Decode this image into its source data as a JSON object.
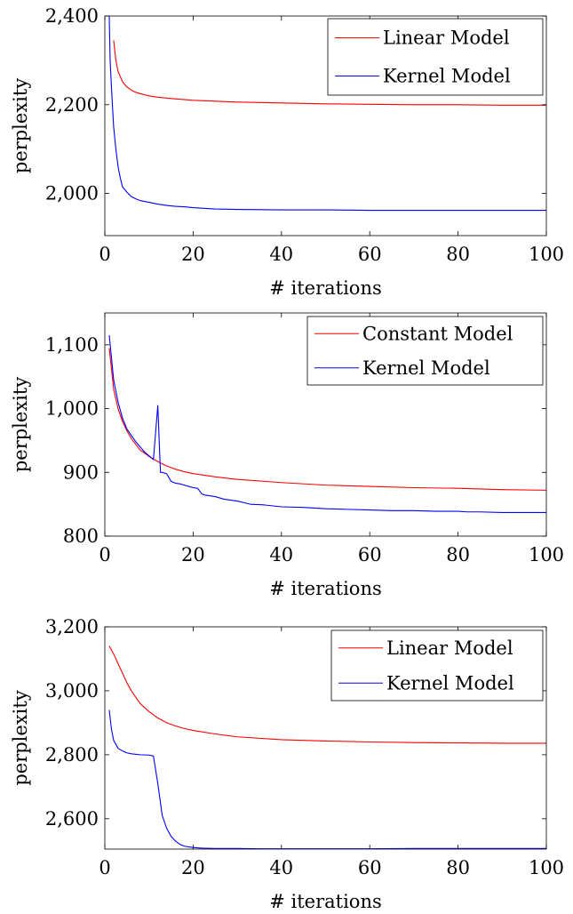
{
  "chart_data": [
    {
      "type": "line",
      "xlabel": "# iterations",
      "ylabel": "perplexity",
      "xlim": [
        0,
        100
      ],
      "ylim": [
        1905,
        2400
      ],
      "xticks": [
        0,
        20,
        40,
        60,
        80,
        100
      ],
      "xtick_labels": [
        "0",
        "20",
        "40",
        "60",
        "80",
        "100"
      ],
      "yticks": [
        2000,
        2200,
        2400
      ],
      "ytick_labels": [
        "2,000",
        "2,200",
        "2,400"
      ],
      "legend_position": "top-right",
      "series": [
        {
          "name": "Linear Model",
          "color": "#ff0000",
          "x": [
            2,
            2.5,
            3,
            4,
            5,
            6,
            7,
            8,
            10,
            12,
            15,
            20,
            25,
            30,
            40,
            50,
            60,
            70,
            80,
            90,
            100
          ],
          "y": [
            2345,
            2300,
            2275,
            2252,
            2240,
            2233,
            2228,
            2225,
            2220,
            2217,
            2214,
            2210,
            2208,
            2206,
            2204,
            2202,
            2201,
            2200,
            2200,
            2199,
            2199
          ]
        },
        {
          "name": "Kernel Model",
          "color": "#0000ff",
          "x": [
            1,
            1.2,
            1.6,
            2,
            2.5,
            3,
            3.5,
            4,
            5,
            6,
            7,
            8,
            10,
            12,
            14,
            16,
            18,
            20,
            25,
            30,
            40,
            50,
            60,
            70,
            80,
            90,
            100
          ],
          "y": [
            2400,
            2300,
            2220,
            2150,
            2100,
            2060,
            2035,
            2015,
            2003,
            1993,
            1988,
            1984,
            1980,
            1976,
            1973,
            1971,
            1970,
            1968,
            1965,
            1964,
            1963,
            1963,
            1962,
            1962,
            1962,
            1962,
            1962
          ]
        }
      ]
    },
    {
      "type": "line",
      "xlabel": "# iterations",
      "ylabel": "perplexity",
      "xlim": [
        0,
        100
      ],
      "ylim": [
        800,
        1150
      ],
      "xticks": [
        0,
        20,
        40,
        60,
        80,
        100
      ],
      "xtick_labels": [
        "0",
        "20",
        "40",
        "60",
        "80",
        "100"
      ],
      "yticks": [
        800,
        900,
        1000,
        1100
      ],
      "ytick_labels": [
        "800",
        "900",
        "1,000",
        "1,100"
      ],
      "legend_position": "top-right",
      "series": [
        {
          "name": "Constant Model",
          "color": "#ff0000",
          "x": [
            1,
            2,
            3,
            4,
            5,
            6,
            8,
            10,
            12,
            14,
            16,
            18,
            20,
            25,
            30,
            40,
            50,
            60,
            70,
            80,
            90,
            100
          ],
          "y": [
            1095,
            1030,
            1000,
            980,
            965,
            953,
            935,
            925,
            917,
            910,
            905,
            901,
            898,
            893,
            889,
            884,
            880,
            878,
            876,
            875,
            873,
            872
          ]
        },
        {
          "name": "Kernel Model",
          "color": "#0000ff",
          "x": [
            1,
            2,
            3,
            4,
            5,
            6,
            7,
            8,
            9,
            10,
            11,
            12,
            12.6,
            13,
            14,
            15,
            16,
            17,
            18,
            19,
            20,
            21,
            22,
            23,
            25,
            27,
            30,
            33,
            36,
            40,
            45,
            50,
            55,
            60,
            65,
            70,
            75,
            80,
            82,
            85,
            90,
            95,
            100
          ],
          "y": [
            1115,
            1045,
            1010,
            985,
            968,
            958,
            948,
            940,
            932,
            926,
            920,
            1005,
            900,
            900,
            898,
            886,
            883,
            882,
            880,
            878,
            876,
            875,
            866,
            864,
            862,
            858,
            855,
            850,
            849,
            846,
            845,
            843,
            842,
            841,
            840,
            840,
            839,
            839,
            838,
            838,
            837,
            837,
            837
          ]
        }
      ]
    },
    {
      "type": "line",
      "xlabel": "# iterations",
      "ylabel": "perplexity",
      "xlim": [
        0,
        100
      ],
      "ylim": [
        2505,
        3200
      ],
      "xticks": [
        0,
        20,
        40,
        60,
        80,
        100
      ],
      "xtick_labels": [
        "0",
        "20",
        "40",
        "60",
        "80",
        "100"
      ],
      "yticks": [
        2600,
        2800,
        3000,
        3200
      ],
      "ytick_labels": [
        "2,600",
        "2,800",
        "3,000",
        "3,200"
      ],
      "legend_position": "top-right",
      "series": [
        {
          "name": "Linear Model",
          "color": "#ff0000",
          "x": [
            1,
            2,
            3,
            4,
            5,
            6,
            7,
            8,
            10,
            12,
            14,
            16,
            18,
            20,
            25,
            30,
            40,
            50,
            60,
            70,
            80,
            90,
            100
          ],
          "y": [
            3140,
            3115,
            3085,
            3055,
            3025,
            3000,
            2980,
            2960,
            2935,
            2915,
            2900,
            2890,
            2882,
            2876,
            2865,
            2856,
            2847,
            2843,
            2840,
            2838,
            2837,
            2836,
            2836
          ]
        },
        {
          "name": "Kernel Model",
          "color": "#0000ff",
          "x": [
            1,
            1.5,
            2,
            3,
            4,
            5,
            6,
            8,
            10,
            11,
            12,
            13,
            14,
            15,
            16,
            17,
            18,
            20,
            22,
            25,
            30,
            35,
            40,
            50,
            60,
            70,
            80,
            90,
            100
          ],
          "y": [
            2940,
            2880,
            2845,
            2820,
            2812,
            2806,
            2803,
            2800,
            2799,
            2796,
            2710,
            2610,
            2570,
            2545,
            2530,
            2520,
            2514,
            2510,
            2508,
            2507,
            2507,
            2506,
            2506,
            2506,
            2506,
            2507,
            2507,
            2507,
            2507
          ]
        }
      ]
    }
  ]
}
